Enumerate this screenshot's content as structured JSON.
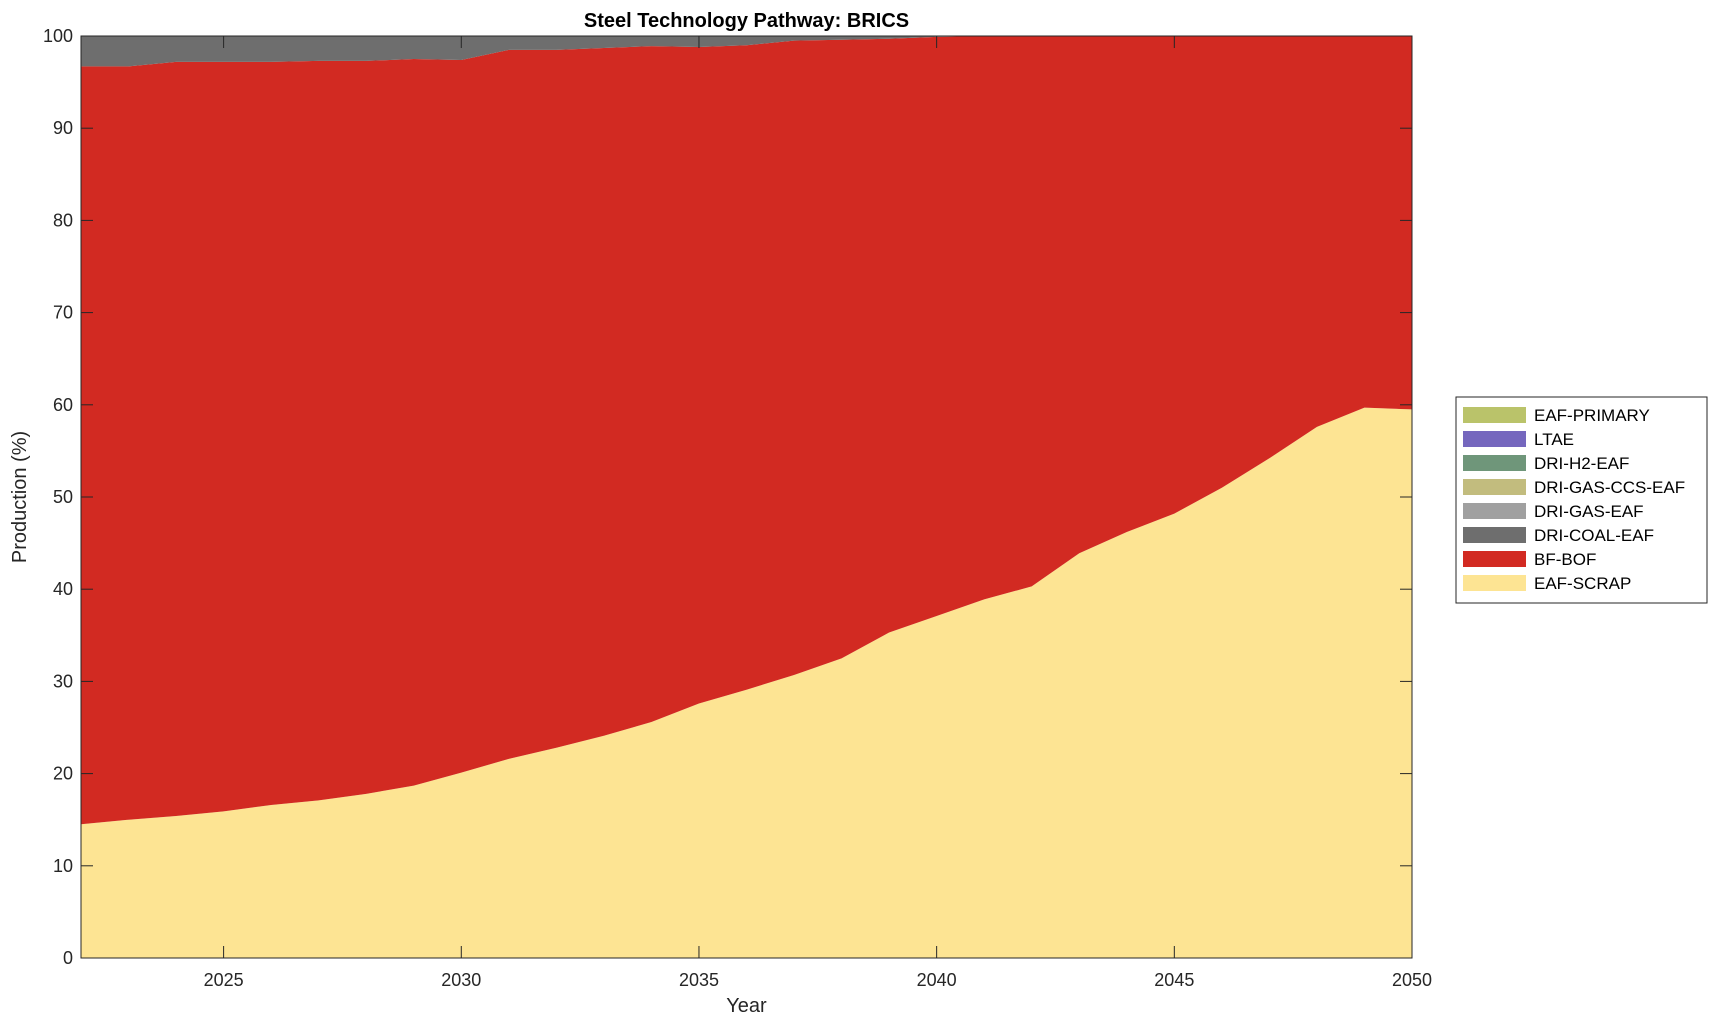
{
  "chart_data": {
    "type": "area",
    "stacked": true,
    "title": "Steel Technology Pathway: BRICS",
    "xlabel": "Year",
    "ylabel": "Production (%)",
    "xlim": [
      2022,
      2050
    ],
    "ylim": [
      0,
      100
    ],
    "xticks": [
      2025,
      2030,
      2035,
      2040,
      2045,
      2050
    ],
    "yticks": [
      0,
      10,
      20,
      30,
      40,
      50,
      60,
      70,
      80,
      90,
      100
    ],
    "grid": false,
    "legend_position": "right",
    "x": [
      2022,
      2023,
      2024,
      2025,
      2026,
      2027,
      2028,
      2029,
      2030,
      2031,
      2032,
      2033,
      2034,
      2035,
      2036,
      2037,
      2038,
      2039,
      2040,
      2041,
      2042,
      2043,
      2044,
      2045,
      2046,
      2047,
      2048,
      2049,
      2050
    ],
    "series": [
      {
        "name": "EAF-SCRAP",
        "color": "#FDE493",
        "values": [
          14.5,
          15.0,
          15.4,
          15.9,
          16.6,
          17.1,
          17.8,
          18.7,
          20.1,
          21.6,
          22.8,
          24.1,
          25.6,
          27.6,
          29.1,
          30.7,
          32.5,
          35.3,
          37.1,
          38.9,
          40.3,
          43.9,
          46.2,
          48.2,
          51.0,
          54.2,
          57.6,
          59.7,
          59.5
        ]
      },
      {
        "name": "BF-BOF",
        "color": "#D22A22",
        "values": [
          82.2,
          81.7,
          81.8,
          81.3,
          80.6,
          80.2,
          79.5,
          78.8,
          77.3,
          76.9,
          75.7,
          74.6,
          73.3,
          71.2,
          69.9,
          68.8,
          67.1,
          64.4,
          62.8,
          61.1,
          59.7,
          56.1,
          53.8,
          51.8,
          49.0,
          45.8,
          42.4,
          40.3,
          40.5
        ]
      },
      {
        "name": "DRI-COAL-EAF",
        "color": "#6E6E6E",
        "values": [
          3.3,
          3.3,
          2.8,
          2.8,
          2.8,
          2.7,
          2.7,
          2.5,
          2.6,
          1.5,
          1.5,
          1.3,
          1.1,
          1.2,
          1.0,
          0.5,
          0.4,
          0.3,
          0.1,
          0.0,
          0.0,
          0.0,
          0.0,
          0.0,
          0.0,
          0.0,
          0.0,
          0.0,
          0.0
        ]
      },
      {
        "name": "DRI-GAS-EAF",
        "color": "#A0A0A0",
        "values": [
          0,
          0,
          0,
          0,
          0,
          0,
          0,
          0,
          0,
          0,
          0,
          0,
          0,
          0,
          0,
          0,
          0,
          0,
          0,
          0,
          0,
          0,
          0,
          0,
          0,
          0,
          0,
          0,
          0
        ]
      },
      {
        "name": "DRI-GAS-CCS-EAF",
        "color": "#C2BC7E",
        "values": [
          0,
          0,
          0,
          0,
          0,
          0,
          0,
          0,
          0,
          0,
          0,
          0,
          0,
          0,
          0,
          0,
          0,
          0,
          0,
          0,
          0,
          0,
          0,
          0,
          0,
          0,
          0,
          0,
          0
        ]
      },
      {
        "name": "DRI-H2-EAF",
        "color": "#6F967A",
        "values": [
          0,
          0,
          0,
          0,
          0,
          0,
          0,
          0,
          0,
          0,
          0,
          0,
          0,
          0,
          0,
          0,
          0,
          0,
          0,
          0,
          0,
          0,
          0,
          0,
          0,
          0,
          0,
          0,
          0
        ]
      },
      {
        "name": "LTAE",
        "color": "#7567BE",
        "values": [
          0,
          0,
          0,
          0,
          0,
          0,
          0,
          0,
          0,
          0,
          0,
          0,
          0,
          0,
          0,
          0,
          0,
          0,
          0,
          0,
          0,
          0,
          0,
          0,
          0,
          0,
          0,
          0,
          0
        ]
      },
      {
        "name": "EAF-PRIMARY",
        "color": "#BAC36A",
        "values": [
          0,
          0,
          0,
          0,
          0,
          0,
          0,
          0,
          0,
          0,
          0,
          0,
          0,
          0,
          0,
          0,
          0,
          0,
          0,
          0,
          0,
          0,
          0,
          0,
          0,
          0,
          0,
          0,
          0
        ]
      }
    ]
  }
}
